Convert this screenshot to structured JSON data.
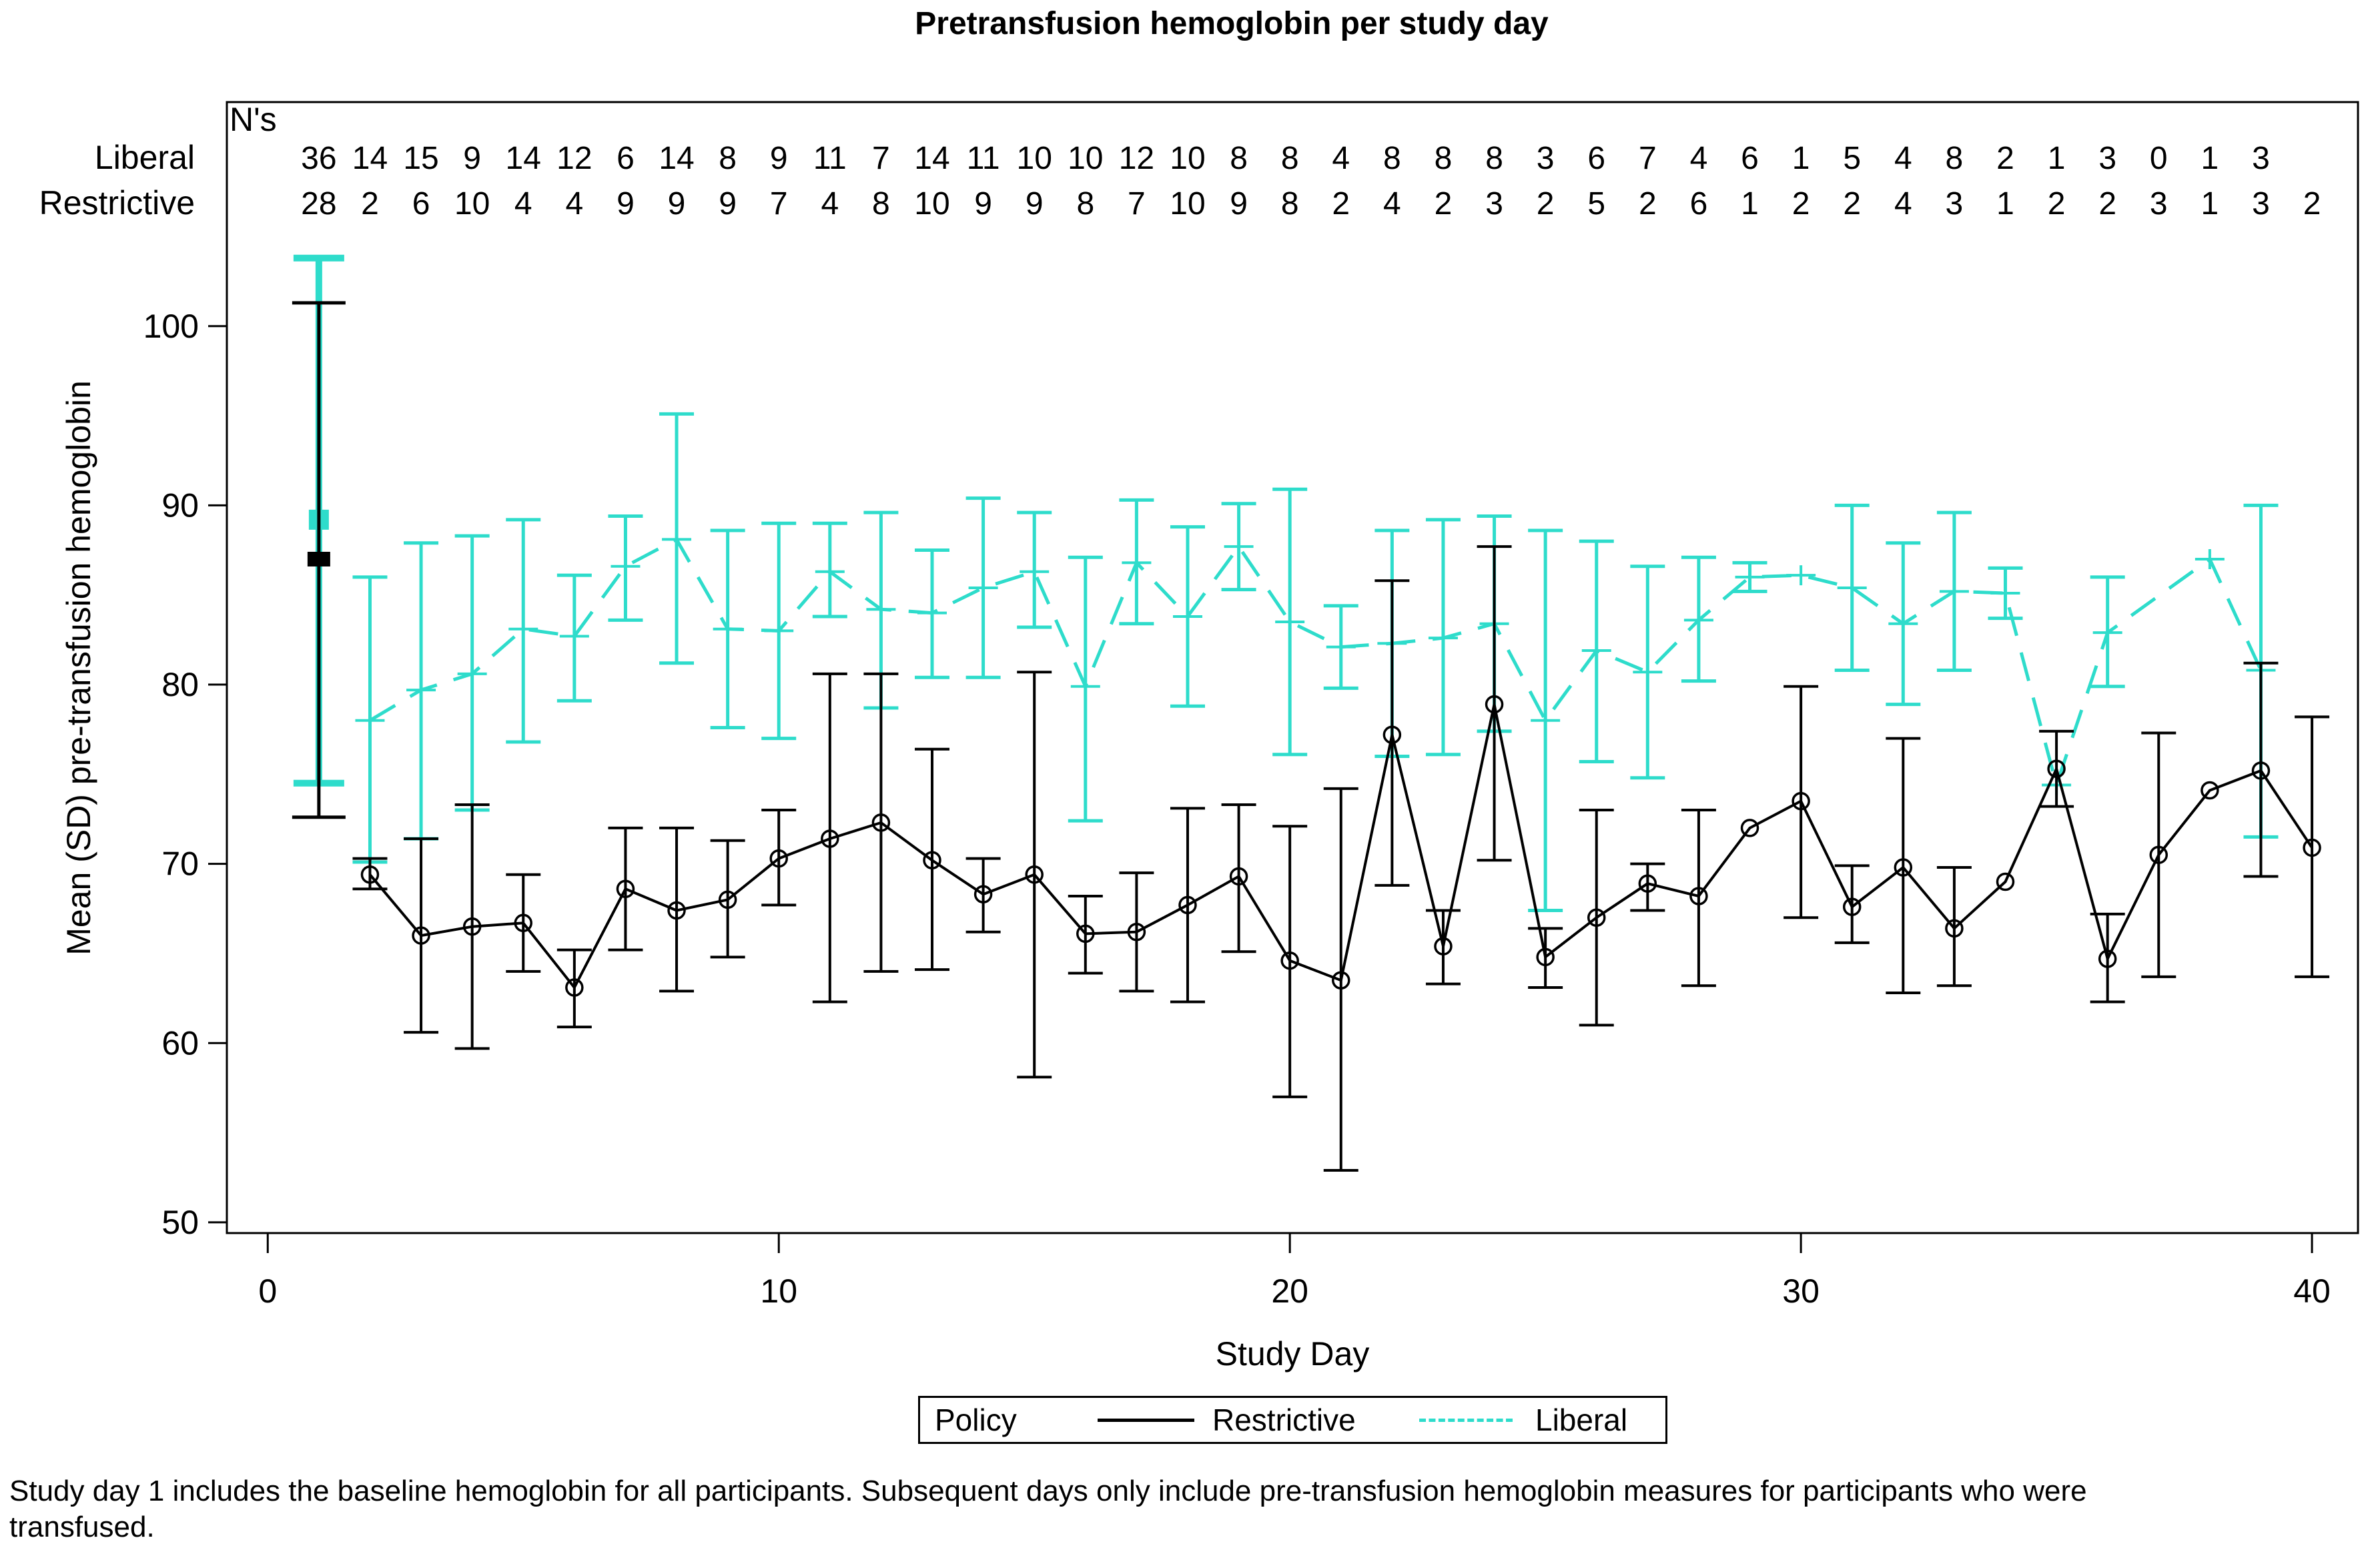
{
  "page": {
    "title": "Pretransfusion hemoglobin per study day",
    "footnote": "Study day 1 includes the baseline hemoglobin for all participants.  Subsequent days only include pre-transfusion hemoglobin measures for participants who were\ntransfused."
  },
  "chart_data": {
    "type": "line",
    "title": "Pretransfusion hemoglobin per study day",
    "xlabel": "Study Day",
    "ylabel": "Mean (SD) pre-transfusion hemoglobin",
    "xlim": [
      -0.8,
      40.9
    ],
    "ylim": [
      49.4,
      112.5
    ],
    "xticks": [
      0,
      10,
      20,
      30,
      40
    ],
    "yticks": [
      50,
      60,
      70,
      80,
      90,
      100
    ],
    "grid": false,
    "legend": {
      "title": "Policy",
      "position": "bottom",
      "entries": [
        {
          "label": "Restrictive",
          "color": "#000000",
          "style": "solid"
        },
        {
          "label": "Liberal",
          "color": "#2edccb",
          "style": "dashed"
        }
      ]
    },
    "ns_table": {
      "header": "N's",
      "rows": [
        {
          "label": "Liberal",
          "values": [
            "36",
            "14",
            "15",
            "9",
            "14",
            "12",
            "6",
            "14",
            "8",
            "9",
            "11",
            "7",
            "14",
            "11",
            "10",
            "10",
            "12",
            "10",
            "8",
            "8",
            "4",
            "8",
            "8",
            "8",
            "3",
            "6",
            "7",
            "4",
            "6",
            "1",
            "5",
            "4",
            "8",
            "2",
            "1",
            "3",
            "0",
            "1",
            "3",
            ""
          ]
        },
        {
          "label": "Restrictive",
          "values": [
            "28",
            "2",
            "6",
            "10",
            "4",
            "4",
            "9",
            "9",
            "9",
            "7",
            "4",
            "8",
            "10",
            "9",
            "9",
            "8",
            "7",
            "10",
            "9",
            "8",
            "2",
            "4",
            "2",
            "3",
            "2",
            "5",
            "2",
            "6",
            "1",
            "2",
            "2",
            "4",
            "3",
            "1",
            "2",
            "2",
            "3",
            "1",
            "3",
            "2"
          ]
        }
      ]
    },
    "series": [
      {
        "name": "Liberal",
        "color": "#2edccb",
        "style": "dashed",
        "marker": "plus",
        "baseline": {
          "day": 1,
          "mean": 89.2,
          "lo": 74.5,
          "hi": 103.8
        },
        "points": [
          [
            2,
            78.0,
            70.1,
            86.0
          ],
          [
            3,
            79.7,
            71.4,
            87.9
          ],
          [
            4,
            80.6,
            73.0,
            88.3
          ],
          [
            5,
            83.1,
            76.8,
            89.2
          ],
          [
            6,
            82.7,
            79.1,
            86.1
          ],
          [
            7,
            86.6,
            83.6,
            89.4
          ],
          [
            8,
            88.1,
            81.2,
            95.1
          ],
          [
            9,
            83.1,
            77.6,
            88.6
          ],
          [
            10,
            83.0,
            77.0,
            89.0
          ],
          [
            11,
            86.3,
            83.8,
            89.0
          ],
          [
            12,
            84.2,
            78.7,
            89.6
          ],
          [
            13,
            84.0,
            80.4,
            87.5
          ],
          [
            14,
            85.4,
            80.4,
            90.4
          ],
          [
            15,
            86.3,
            83.2,
            89.6
          ],
          [
            16,
            79.9,
            72.4,
            87.1
          ],
          [
            17,
            86.8,
            83.4,
            90.3
          ],
          [
            18,
            83.8,
            78.8,
            88.8
          ],
          [
            19,
            87.7,
            85.3,
            90.1
          ],
          [
            20,
            83.5,
            76.1,
            90.9
          ],
          [
            21,
            82.1,
            79.8,
            84.4
          ],
          [
            22,
            82.3,
            76.0,
            88.6
          ],
          [
            23,
            82.6,
            76.1,
            89.2
          ],
          [
            24,
            83.4,
            77.4,
            89.4
          ],
          [
            25,
            78.0,
            67.4,
            88.6
          ],
          [
            26,
            81.9,
            75.7,
            88.0
          ],
          [
            27,
            80.7,
            74.8,
            86.6
          ],
          [
            28,
            83.6,
            80.2,
            87.1
          ],
          [
            29,
            86.0,
            85.2,
            86.8
          ],
          [
            30,
            86.1,
            null,
            null
          ],
          [
            31,
            85.4,
            80.8,
            90.0
          ],
          [
            32,
            83.4,
            78.9,
            87.9
          ],
          [
            33,
            85.2,
            80.8,
            89.6
          ],
          [
            34,
            85.1,
            83.7,
            86.5
          ],
          [
            35,
            74.4,
            null,
            null
          ],
          [
            36,
            82.9,
            79.9,
            86.0
          ],
          [
            38,
            87.0,
            null,
            null
          ],
          [
            39,
            80.8,
            71.5,
            90.0
          ]
        ]
      },
      {
        "name": "Restrictive",
        "color": "#000000",
        "style": "solid",
        "marker": "circle",
        "baseline": {
          "day": 1,
          "mean": 87.0,
          "lo": 72.6,
          "hi": 101.3
        },
        "points": [
          [
            2,
            69.4,
            68.6,
            70.3
          ],
          [
            3,
            66.0,
            60.6,
            71.4
          ],
          [
            4,
            66.5,
            59.7,
            73.3
          ],
          [
            5,
            66.7,
            64.0,
            69.4
          ],
          [
            6,
            63.1,
            60.9,
            65.2
          ],
          [
            7,
            68.6,
            65.2,
            72.0
          ],
          [
            8,
            67.4,
            62.9,
            72.0
          ],
          [
            9,
            68.0,
            64.8,
            71.3
          ],
          [
            10,
            70.3,
            67.7,
            73.0
          ],
          [
            11,
            71.4,
            62.3,
            80.6
          ],
          [
            12,
            72.3,
            64.0,
            80.6
          ],
          [
            13,
            70.2,
            64.1,
            76.4
          ],
          [
            14,
            68.3,
            66.2,
            70.3
          ],
          [
            15,
            69.4,
            58.1,
            80.7
          ],
          [
            16,
            66.1,
            63.9,
            68.2
          ],
          [
            17,
            66.2,
            62.9,
            69.5
          ],
          [
            18,
            67.7,
            62.3,
            73.1
          ],
          [
            19,
            69.3,
            65.1,
            73.3
          ],
          [
            20,
            64.6,
            57.0,
            72.1
          ],
          [
            21,
            63.5,
            52.9,
            74.2
          ],
          [
            22,
            77.2,
            68.8,
            85.8
          ],
          [
            23,
            65.4,
            63.3,
            67.4
          ],
          [
            24,
            78.9,
            70.2,
            87.7
          ],
          [
            25,
            64.8,
            63.1,
            66.4
          ],
          [
            26,
            67.0,
            61.0,
            73.0
          ],
          [
            27,
            68.9,
            67.4,
            70.0
          ],
          [
            28,
            68.2,
            63.2,
            73.0
          ],
          [
            29,
            72.0,
            null,
            null
          ],
          [
            30,
            73.5,
            67.0,
            79.9
          ],
          [
            31,
            67.6,
            65.6,
            69.9
          ],
          [
            32,
            69.8,
            62.8,
            77.0
          ],
          [
            33,
            66.4,
            63.2,
            69.8
          ],
          [
            34,
            69.0,
            null,
            null
          ],
          [
            35,
            75.3,
            73.2,
            77.4
          ],
          [
            36,
            64.7,
            62.3,
            67.2
          ],
          [
            37,
            70.5,
            63.7,
            77.3
          ],
          [
            38,
            74.1,
            null,
            null
          ],
          [
            39,
            75.2,
            69.3,
            81.2
          ],
          [
            40,
            70.9,
            63.7,
            78.2
          ]
        ]
      }
    ]
  }
}
